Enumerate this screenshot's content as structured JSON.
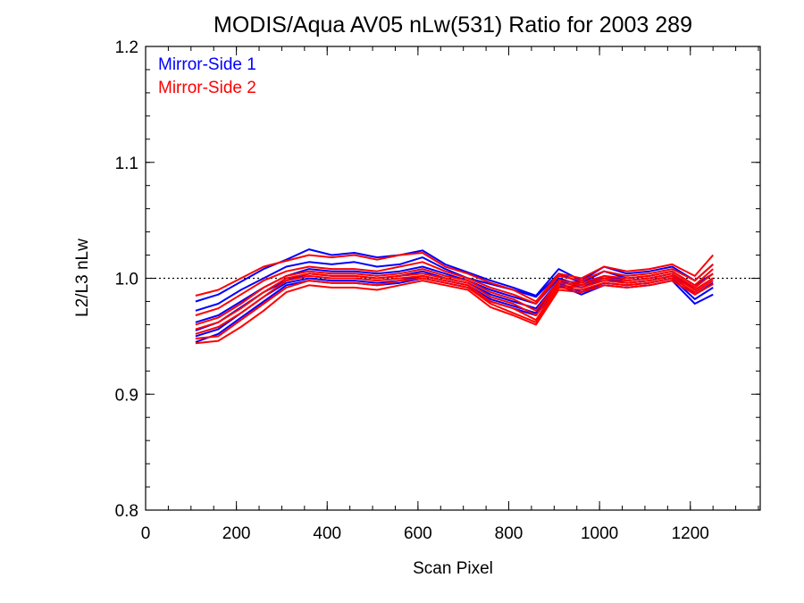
{
  "chart_data": {
    "type": "line",
    "title": "MODIS/Aqua AV05 nLw(531) Ratio for 2003 289",
    "xlabel": "Scan Pixel",
    "ylabel": "L2/L3 nLw",
    "xlim": [
      0,
      1354
    ],
    "ylim": [
      0.8,
      1.2
    ],
    "xticks": [
      "0",
      "200",
      "400",
      "600",
      "800",
      "1000",
      "1200"
    ],
    "yticks": [
      "0.8",
      "0.9",
      "1.0",
      "1.1",
      "1.2"
    ],
    "reference_line": {
      "y": 1.0,
      "style": "dotted"
    },
    "legend": {
      "position": "top-left",
      "entries": [
        {
          "label": "Mirror-Side 1",
          "color": "#0000ff"
        },
        {
          "label": "Mirror-Side 2",
          "color": "#ff0000"
        }
      ]
    },
    "x": [
      110,
      160,
      210,
      260,
      310,
      360,
      410,
      460,
      510,
      560,
      610,
      660,
      710,
      760,
      810,
      860,
      910,
      960,
      1010,
      1060,
      1110,
      1160,
      1210,
      1250
    ],
    "series": [
      {
        "color": "#0000ff",
        "values": [
          0.98,
          0.986,
          0.997,
          1.008,
          1.016,
          1.025,
          1.02,
          1.022,
          1.018,
          1.02,
          1.024,
          1.012,
          1.005,
          0.998,
          0.992,
          0.985,
          1.008,
          0.998,
          1.01,
          1.004,
          1.006,
          1.01,
          0.998,
          1.012
        ]
      },
      {
        "color": "#0000ff",
        "values": [
          0.972,
          0.978,
          0.99,
          1.0,
          1.01,
          1.014,
          1.012,
          1.014,
          1.01,
          1.012,
          1.018,
          1.008,
          1.0,
          0.995,
          0.99,
          0.984,
          1.004,
          0.996,
          1.006,
          1.0,
          1.002,
          1.006,
          0.994,
          1.004
        ]
      },
      {
        "color": "#0000ff",
        "values": [
          0.962,
          0.968,
          0.98,
          0.992,
          1.002,
          1.008,
          1.006,
          1.006,
          1.004,
          1.006,
          1.01,
          1.004,
          0.998,
          0.99,
          0.984,
          0.978,
          1.0,
          0.994,
          1.002,
          0.998,
          1.0,
          1.004,
          0.99,
          1.0
        ]
      },
      {
        "color": "#0000ff",
        "values": [
          0.955,
          0.962,
          0.975,
          0.988,
          0.998,
          1.004,
          1.002,
          1.002,
          1.0,
          1.002,
          1.006,
          1.0,
          0.996,
          0.986,
          0.98,
          0.974,
          0.998,
          0.992,
          1.0,
          0.996,
          0.998,
          1.002,
          0.986,
          0.996
        ]
      },
      {
        "color": "#0000ff",
        "values": [
          0.95,
          0.956,
          0.97,
          0.984,
          0.996,
          1.0,
          0.998,
          0.998,
          0.996,
          0.998,
          1.002,
          0.998,
          0.994,
          0.982,
          0.976,
          0.97,
          0.996,
          0.988,
          0.996,
          0.994,
          0.996,
          1.0,
          0.982,
          0.992
        ]
      },
      {
        "color": "#0000ff",
        "values": [
          0.945,
          0.952,
          0.966,
          0.98,
          0.994,
          0.998,
          0.996,
          0.996,
          0.994,
          0.996,
          1.0,
          0.996,
          0.992,
          0.98,
          0.974,
          0.968,
          0.994,
          0.986,
          0.994,
          0.992,
          0.994,
          0.998,
          0.978,
          0.986
        ]
      },
      {
        "color": "#ff0000",
        "values": [
          0.985,
          0.99,
          1.0,
          1.01,
          1.015,
          1.02,
          1.018,
          1.02,
          1.016,
          1.02,
          1.022,
          1.01,
          1.004,
          0.996,
          0.99,
          0.98,
          1.004,
          1.0,
          1.01,
          1.006,
          1.008,
          1.012,
          1.002,
          1.02
        ]
      },
      {
        "color": "#ff0000",
        "values": [
          0.968,
          0.974,
          0.986,
          0.998,
          1.006,
          1.01,
          1.008,
          1.008,
          1.006,
          1.01,
          1.014,
          1.006,
          1.0,
          0.992,
          0.986,
          0.978,
          1.002,
          0.998,
          1.006,
          1.002,
          1.004,
          1.008,
          0.998,
          1.012
        ]
      },
      {
        "color": "#ff0000",
        "values": [
          0.96,
          0.966,
          0.978,
          0.992,
          1.002,
          1.006,
          1.004,
          1.004,
          1.002,
          1.004,
          1.008,
          1.002,
          0.998,
          0.988,
          0.982,
          0.972,
          0.998,
          0.996,
          1.002,
          1.0,
          1.002,
          1.006,
          0.994,
          1.008
        ]
      },
      {
        "color": "#ff0000",
        "values": [
          0.956,
          0.962,
          0.974,
          0.988,
          1.0,
          1.004,
          1.002,
          1.002,
          1.0,
          1.002,
          1.004,
          1.0,
          0.996,
          0.984,
          0.978,
          0.968,
          0.996,
          0.994,
          1.0,
          0.998,
          1.0,
          1.004,
          0.992,
          1.004
        ]
      },
      {
        "color": "#ff0000",
        "values": [
          0.952,
          0.958,
          0.97,
          0.984,
          0.998,
          1.002,
          1.0,
          1.0,
          0.998,
          1.0,
          1.002,
          0.998,
          0.994,
          0.98,
          0.974,
          0.964,
          0.994,
          0.992,
          0.998,
          0.996,
          0.998,
          1.002,
          0.99,
          1.0
        ]
      },
      {
        "color": "#ff0000",
        "values": [
          0.948,
          0.95,
          0.964,
          0.978,
          0.992,
          0.998,
          0.996,
          0.996,
          0.994,
          0.998,
          1.0,
          0.996,
          0.992,
          0.978,
          0.97,
          0.962,
          0.992,
          0.99,
          0.996,
          0.994,
          0.996,
          1.0,
          0.988,
          0.998
        ]
      },
      {
        "color": "#ff0000",
        "values": [
          0.944,
          0.946,
          0.958,
          0.972,
          0.988,
          0.994,
          0.992,
          0.992,
          0.99,
          0.994,
          0.998,
          0.994,
          0.99,
          0.975,
          0.968,
          0.96,
          0.99,
          0.988,
          0.994,
          0.992,
          0.994,
          0.998,
          0.986,
          0.995
        ]
      }
    ]
  }
}
